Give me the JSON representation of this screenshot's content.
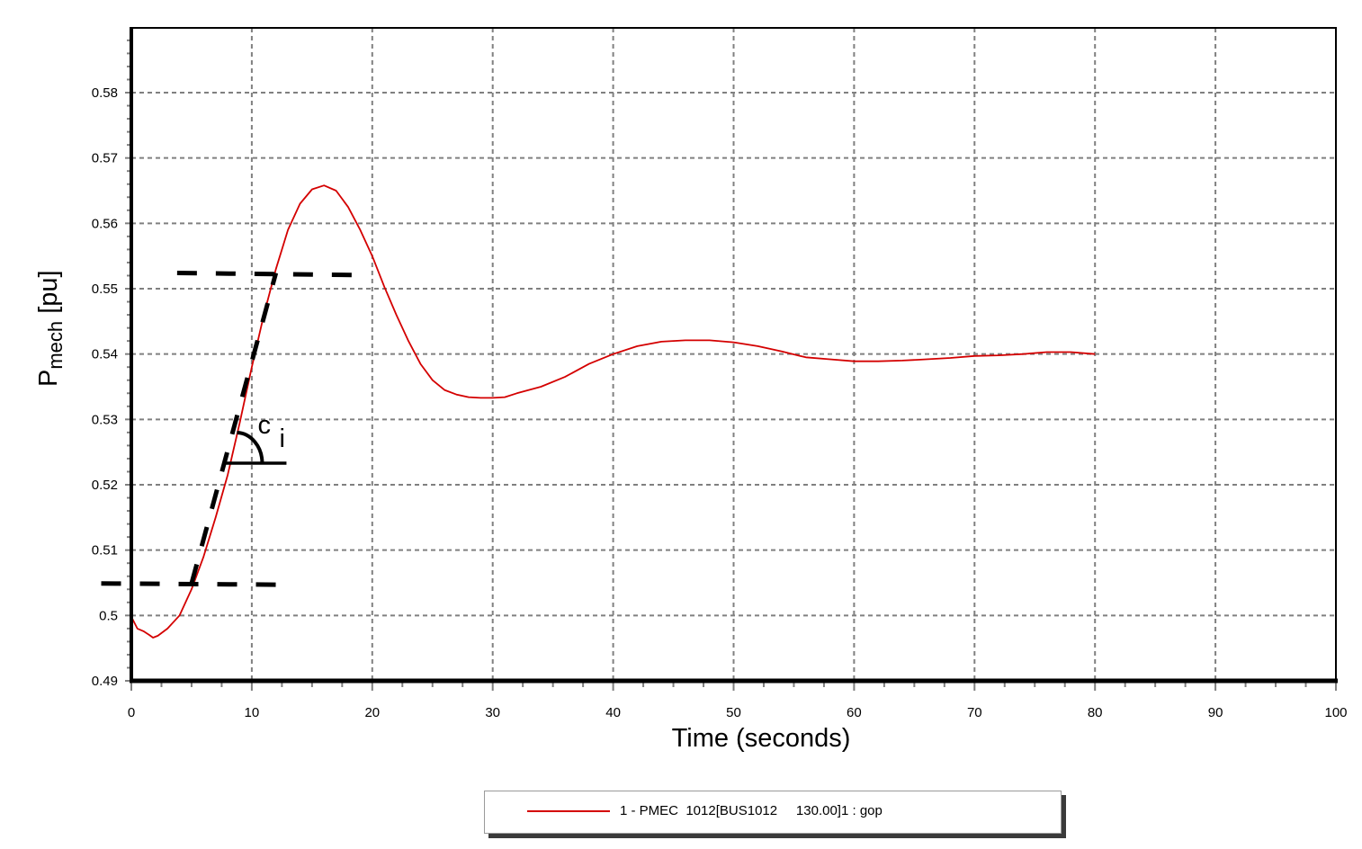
{
  "chart_data": {
    "type": "line",
    "title": "",
    "xlabel": "Time (seconds)",
    "ylabel": "Pmech [pu]",
    "ylabel_main": "P",
    "ylabel_sub": "mech",
    "ylabel_unit": " [pu]",
    "xlim": [
      0,
      100
    ],
    "ylim": [
      0.49,
      0.59
    ],
    "grid": true,
    "x_ticks": [
      0,
      10,
      20,
      30,
      40,
      50,
      60,
      70,
      80,
      90,
      100
    ],
    "x_tick_labels": [
      "0",
      "10",
      "20",
      "30",
      "40",
      "50",
      "60",
      "70",
      "80",
      "90",
      "100"
    ],
    "y_ticks": [
      0.49,
      0.5,
      0.51,
      0.52,
      0.53,
      0.54,
      0.55,
      0.56,
      0.57,
      0.58
    ],
    "y_tick_labels": [
      "0.49",
      "0.5",
      "0.51",
      "0.52",
      "0.53",
      "0.54",
      "0.55",
      "0.56",
      "0.57",
      "0.58"
    ],
    "legend_position": "bottom-center",
    "series": [
      {
        "name": "1 - PMEC  1012[BUS1012     130.00]1 : gop",
        "color": "#d40000",
        "x": [
          0,
          0.5,
          1,
          1.5,
          1.8,
          2.2,
          3,
          4,
          5,
          6,
          7,
          8,
          9,
          10,
          11,
          12,
          13,
          14,
          15,
          16,
          17,
          18,
          19,
          20,
          21,
          22,
          23,
          24,
          25,
          26,
          27,
          28,
          29,
          30,
          31,
          32,
          33,
          34,
          36,
          38,
          40,
          42,
          44,
          46,
          48,
          50,
          52,
          54,
          56,
          58,
          60,
          62,
          64,
          66,
          68,
          70,
          72,
          74,
          76,
          78,
          80
        ],
        "values": [
          0.4998,
          0.498,
          0.4976,
          0.497,
          0.4966,
          0.4969,
          0.498,
          0.5,
          0.504,
          0.509,
          0.515,
          0.5215,
          0.5295,
          0.538,
          0.546,
          0.553,
          0.559,
          0.563,
          0.5652,
          0.5658,
          0.565,
          0.5625,
          0.559,
          0.555,
          0.5503,
          0.546,
          0.542,
          0.5385,
          0.536,
          0.5345,
          0.5338,
          0.5334,
          0.5333,
          0.5333,
          0.5334,
          0.534,
          0.5345,
          0.535,
          0.5365,
          0.5385,
          0.54,
          0.5412,
          0.5419,
          0.5421,
          0.5421,
          0.5418,
          0.5412,
          0.5404,
          0.5395,
          0.5392,
          0.5389,
          0.5389,
          0.539,
          0.5392,
          0.5394,
          0.5397,
          0.5398,
          0.54,
          0.5403,
          0.5403,
          0.54
        ]
      }
    ],
    "annotations": [
      {
        "type": "dashed-line",
        "label": "initial-level",
        "x": [
          -2.5,
          13
        ],
        "y": [
          0.5049,
          0.5047
        ]
      },
      {
        "type": "dashed-line",
        "label": "final-level",
        "x": [
          3.8,
          18.5
        ],
        "y": [
          0.5524,
          0.5521
        ]
      },
      {
        "type": "dashed-line",
        "label": "slope-tangent",
        "x": [
          5,
          12
        ],
        "y": [
          0.5049,
          0.5524
        ]
      },
      {
        "type": "angle-arc",
        "label": "c",
        "subscript": "i",
        "vertex": [
          7.8,
          0.5233
        ]
      }
    ]
  },
  "legend": {
    "label": "1 - PMEC  1012[BUS1012     130.00]1 : gop",
    "line_color": "#d40000"
  },
  "colors": {
    "series": "#d40000",
    "grid": "#808080",
    "axis": "#000000",
    "annotation": "#000000"
  }
}
